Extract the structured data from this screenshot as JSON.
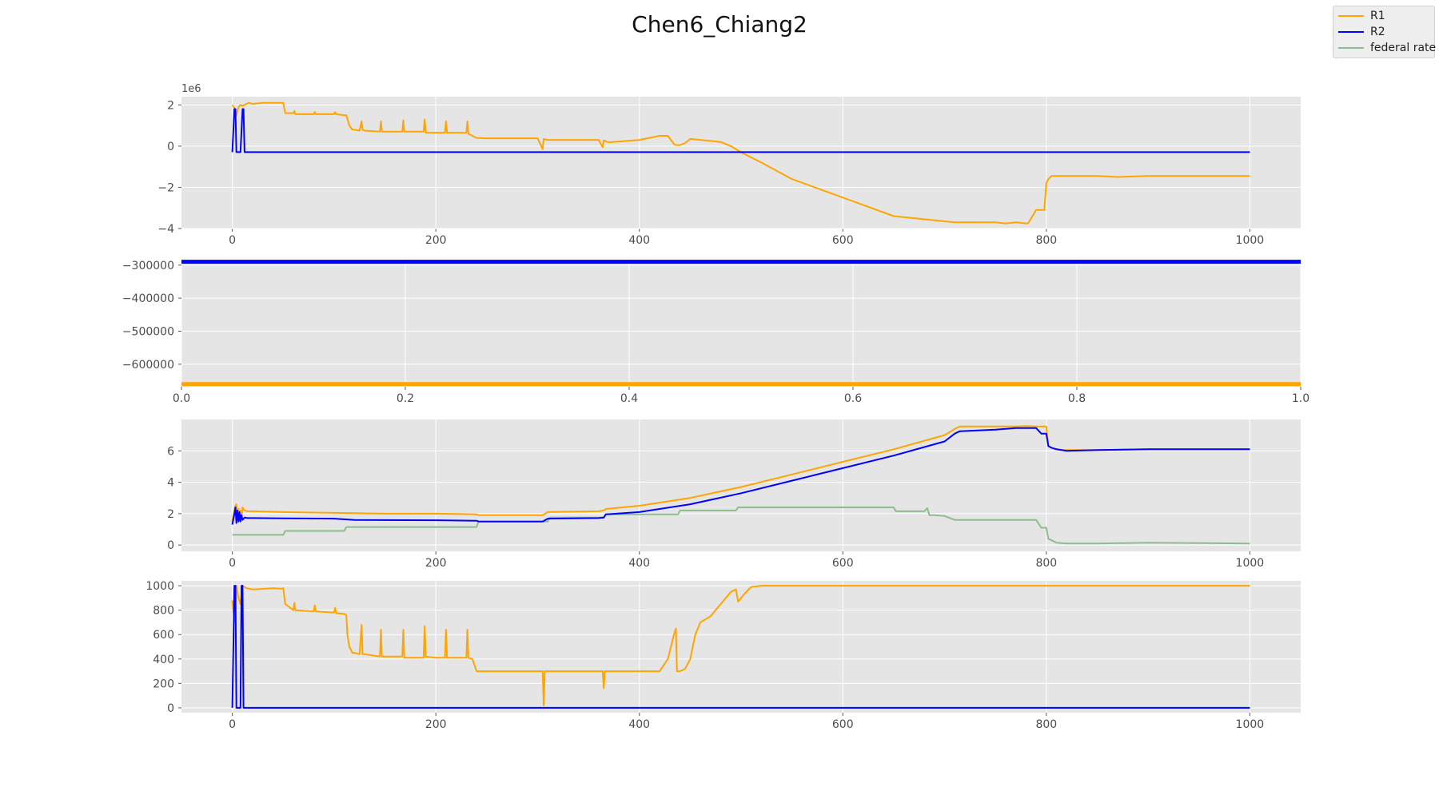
{
  "title": "Chen6_Chiang2",
  "legend": [
    {
      "label": "R1",
      "color": "#FFA500"
    },
    {
      "label": "R2",
      "color": "#0000FF"
    },
    {
      "label": "federal rate",
      "color": "#8FBC8F"
    }
  ],
  "chart_data": [
    {
      "type": "line",
      "offset_label": "1e6",
      "xlim": [
        -50,
        1050
      ],
      "ylim": [
        -4,
        2.4
      ],
      "xticks": [
        0,
        200,
        400,
        600,
        800,
        1000
      ],
      "xtick_labels": [
        "0",
        "200",
        "400",
        "600",
        "800",
        "1000"
      ],
      "yticks": [
        -4,
        -2,
        0,
        2
      ],
      "ytick_labels": [
        "−4",
        "−2",
        "0",
        "2"
      ],
      "grid": true,
      "series": [
        {
          "name": "R1",
          "color": "#FFA500",
          "x": [
            0,
            2,
            4,
            6,
            8,
            10,
            12,
            14,
            16,
            20,
            30,
            40,
            48,
            50,
            52,
            60,
            61,
            62,
            80,
            81,
            82,
            100,
            101,
            102,
            110,
            112,
            115,
            118,
            120,
            125,
            127,
            128,
            130,
            145,
            146,
            147,
            160,
            167,
            168,
            169,
            180,
            188,
            189,
            190,
            200,
            209,
            210,
            211,
            230,
            231,
            232,
            236,
            240,
            250,
            300,
            305,
            306,
            307,
            310,
            360,
            364,
            365,
            366,
            370,
            400,
            420,
            428,
            434,
            436,
            440,
            445,
            450,
            460,
            480,
            490,
            500,
            520,
            550,
            600,
            650,
            700,
            710,
            750,
            760,
            770,
            780,
            782,
            790,
            798,
            800,
            802,
            805,
            815,
            830,
            850,
            870,
            900,
            950,
            1000
          ],
          "y": [
            2.0,
            1.85,
            1.5,
            1.9,
            2.0,
            1.95,
            2.0,
            2.05,
            2.1,
            2.05,
            2.1,
            2.1,
            2.1,
            2.1,
            1.6,
            1.6,
            1.7,
            1.55,
            1.55,
            1.65,
            1.55,
            1.55,
            1.65,
            1.55,
            1.5,
            1.5,
            1.0,
            0.8,
            0.8,
            0.75,
            1.2,
            0.8,
            0.75,
            0.7,
            1.2,
            0.7,
            0.7,
            0.7,
            1.25,
            0.7,
            0.7,
            0.7,
            1.3,
            0.65,
            0.65,
            0.65,
            1.2,
            0.65,
            0.65,
            1.2,
            0.6,
            0.5,
            0.4,
            0.38,
            0.38,
            -0.15,
            0.35,
            0.33,
            0.3,
            0.3,
            -0.05,
            0.28,
            0.25,
            0.18,
            0.3,
            0.5,
            0.5,
            0.1,
            0.05,
            0.05,
            0.15,
            0.35,
            0.3,
            0.2,
            0.0,
            -0.3,
            -0.8,
            -1.6,
            -2.5,
            -3.4,
            -3.65,
            -3.7,
            -3.7,
            -3.75,
            -3.7,
            -3.75,
            -3.75,
            -3.1,
            -3.1,
            -1.8,
            -1.6,
            -1.45,
            -1.45,
            -1.45,
            -1.45,
            -1.5,
            -1.45,
            -1.45,
            -1.45
          ]
        },
        {
          "name": "R2",
          "color": "#0000FF",
          "x": [
            0,
            2,
            3,
            4,
            6,
            8,
            10,
            11,
            12,
            14,
            20,
            100,
            500,
            1000
          ],
          "y": [
            -0.29,
            1.8,
            1.8,
            -0.29,
            -0.29,
            -0.29,
            1.8,
            1.8,
            -0.29,
            -0.29,
            -0.29,
            -0.29,
            -0.29,
            -0.29
          ]
        }
      ]
    },
    {
      "type": "line",
      "xlim": [
        0,
        1
      ],
      "ylim": [
        -668000,
        -286000
      ],
      "xticks": [
        0,
        0.2,
        0.4,
        0.6,
        0.8,
        1.0
      ],
      "xtick_labels": [
        "0.0",
        "0.2",
        "0.4",
        "0.6",
        "0.8",
        "1.0"
      ],
      "yticks": [
        -300000,
        -400000,
        -500000,
        -600000
      ],
      "ytick_labels": [
        "−300000",
        "−400000",
        "−500000",
        "−600000"
      ],
      "grid": true,
      "hlines": [
        {
          "name": "R2",
          "y": -290000,
          "color": "#0000FF"
        },
        {
          "name": "R1",
          "y": -660000,
          "color": "#FFA500"
        }
      ]
    },
    {
      "type": "line",
      "xlim": [
        -50,
        1050
      ],
      "ylim": [
        -0.4,
        8.0
      ],
      "xticks": [
        0,
        200,
        400,
        600,
        800,
        1000
      ],
      "xtick_labels": [
        "0",
        "200",
        "400",
        "600",
        "800",
        "1000"
      ],
      "yticks": [
        0,
        2,
        4,
        6
      ],
      "ytick_labels": [
        "0",
        "2",
        "4",
        "6"
      ],
      "grid": true,
      "series": [
        {
          "name": "federal rate",
          "color": "#8FBC8F",
          "x": [
            0,
            50,
            52,
            110,
            112,
            240,
            242,
            310,
            312,
            365,
            367,
            438,
            440,
            495,
            497,
            580,
            600,
            640,
            650,
            652,
            680,
            683,
            685,
            690,
            700,
            710,
            790,
            795,
            800,
            802,
            810,
            820,
            850,
            900,
            1000
          ],
          "y": [
            0.65,
            0.65,
            0.9,
            0.9,
            1.15,
            1.15,
            1.5,
            1.5,
            1.75,
            1.75,
            1.95,
            1.95,
            2.2,
            2.2,
            2.4,
            2.4,
            2.4,
            2.4,
            2.4,
            2.15,
            2.15,
            2.35,
            1.9,
            1.9,
            1.85,
            1.6,
            1.6,
            1.1,
            1.1,
            0.4,
            0.15,
            0.1,
            0.1,
            0.15,
            0.1
          ]
        },
        {
          "name": "R1",
          "color": "#FFA500",
          "x": [
            0,
            2,
            3,
            4,
            5,
            6,
            7,
            8,
            9,
            10,
            12,
            15,
            20,
            50,
            100,
            150,
            200,
            240,
            242,
            300,
            305,
            310,
            360,
            365,
            367,
            400,
            450,
            500,
            550,
            600,
            650,
            700,
            710,
            715,
            750,
            760,
            770,
            780,
            790,
            795,
            800,
            802,
            805,
            810,
            815,
            820,
            850,
            900,
            1000
          ],
          "y": [
            1.5,
            2.2,
            2.5,
            2.6,
            1.5,
            2.3,
            1.6,
            2.2,
            1.7,
            2.4,
            2.2,
            2.15,
            2.15,
            2.1,
            2.05,
            2.0,
            2.0,
            1.95,
            1.9,
            1.9,
            1.9,
            2.1,
            2.15,
            2.2,
            2.3,
            2.5,
            3.0,
            3.7,
            4.5,
            5.3,
            6.1,
            7.0,
            7.4,
            7.55,
            7.55,
            7.55,
            7.55,
            7.58,
            7.55,
            7.55,
            7.55,
            6.3,
            6.2,
            6.1,
            6.05,
            6.05,
            6.05,
            6.1,
            6.1
          ]
        },
        {
          "name": "R2",
          "color": "#0000FF",
          "x": [
            0,
            2,
            3,
            4,
            5,
            6,
            7,
            8,
            9,
            10,
            12,
            15,
            20,
            50,
            100,
            120,
            200,
            240,
            242,
            300,
            305,
            310,
            360,
            365,
            367,
            400,
            450,
            500,
            550,
            600,
            650,
            700,
            710,
            715,
            750,
            760,
            770,
            780,
            790,
            795,
            800,
            802,
            805,
            810,
            815,
            820,
            850,
            900,
            1000
          ],
          "y": [
            1.3,
            2.0,
            2.4,
            1.4,
            2.2,
            1.5,
            2.1,
            1.5,
            1.9,
            1.6,
            1.75,
            1.72,
            1.72,
            1.7,
            1.68,
            1.6,
            1.58,
            1.55,
            1.5,
            1.5,
            1.5,
            1.68,
            1.72,
            1.75,
            1.95,
            2.1,
            2.6,
            3.3,
            4.1,
            4.9,
            5.7,
            6.6,
            7.1,
            7.25,
            7.35,
            7.4,
            7.45,
            7.45,
            7.45,
            7.1,
            7.1,
            6.3,
            6.2,
            6.1,
            6.05,
            6.0,
            6.05,
            6.1,
            6.1
          ]
        }
      ]
    },
    {
      "type": "line",
      "xlim": [
        -50,
        1050
      ],
      "ylim": [
        -40,
        1040
      ],
      "xticks": [
        0,
        200,
        400,
        600,
        800,
        1000
      ],
      "xtick_labels": [
        "0",
        "200",
        "400",
        "600",
        "800",
        "1000"
      ],
      "yticks": [
        0,
        200,
        400,
        600,
        800,
        1000
      ],
      "ytick_labels": [
        "0",
        "200",
        "400",
        "600",
        "800",
        "1000"
      ],
      "grid": true,
      "series": [
        {
          "name": "R1",
          "color": "#FFA500",
          "x": [
            0,
            2,
            4,
            6,
            8,
            10,
            12,
            14,
            20,
            40,
            48,
            50,
            52,
            60,
            61,
            62,
            80,
            81,
            82,
            100,
            101,
            102,
            110,
            112,
            113,
            115,
            118,
            120,
            125,
            127,
            128,
            130,
            145,
            146,
            147,
            160,
            167,
            168,
            169,
            180,
            188,
            189,
            190,
            200,
            209,
            210,
            211,
            230,
            231,
            232,
            236,
            240,
            241,
            300,
            305,
            306,
            307,
            310,
            360,
            364,
            365,
            366,
            370,
            400,
            420,
            428,
            434,
            436,
            437,
            440,
            445,
            450,
            455,
            460,
            470,
            480,
            490,
            495,
            497,
            500,
            505,
            510,
            520,
            600,
            700,
            800,
            900,
            1000
          ],
          "y": [
            880,
            700,
            1000,
            900,
            850,
            1000,
            990,
            980,
            970,
            980,
            975,
            980,
            850,
            800,
            860,
            800,
            790,
            840,
            790,
            780,
            820,
            775,
            770,
            760,
            600,
            500,
            450,
            450,
            440,
            680,
            440,
            440,
            420,
            640,
            420,
            420,
            420,
            640,
            410,
            410,
            410,
            670,
            420,
            410,
            410,
            640,
            410,
            410,
            640,
            410,
            400,
            300,
            300,
            300,
            300,
            20,
            300,
            300,
            300,
            300,
            160,
            300,
            300,
            300,
            300,
            400,
            600,
            650,
            300,
            300,
            320,
            400,
            600,
            700,
            750,
            850,
            950,
            970,
            870,
            900,
            950,
            990,
            1000,
            1000,
            1000,
            1000,
            1000,
            1000
          ]
        },
        {
          "name": "R2",
          "color": "#0000FF",
          "x": [
            0,
            2,
            3,
            4,
            5,
            8,
            9,
            10,
            11,
            12,
            20,
            100,
            500,
            1000
          ],
          "y": [
            0,
            1000,
            1000,
            0,
            0,
            0,
            1000,
            1000,
            0,
            0,
            0,
            0,
            0,
            0
          ]
        }
      ]
    }
  ]
}
